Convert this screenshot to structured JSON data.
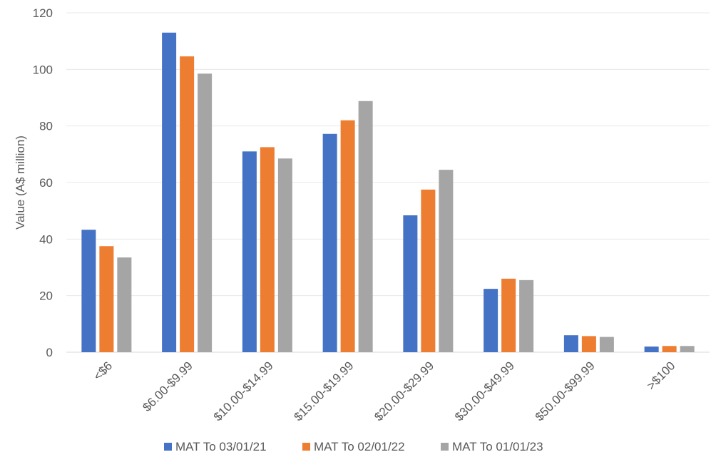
{
  "chart_data": {
    "type": "bar",
    "title": "",
    "xlabel": "",
    "ylabel": "Value (A$ million)",
    "ylim": [
      0,
      120
    ],
    "yticks": [
      0,
      20,
      40,
      60,
      80,
      100,
      120
    ],
    "grid": true,
    "legend_position": "bottom",
    "categories": [
      "<$6",
      "$6.00-$9.99",
      "$10.00-$14.99",
      "$15.00-$19.99",
      "$20.00-$29.99",
      "$30.00-$49.99",
      "$50.00-$99.99",
      ">$100"
    ],
    "series": [
      {
        "name": "MAT To 03/01/21",
        "color": "#4472C4",
        "values": [
          43.3,
          113.0,
          71.0,
          77.2,
          48.4,
          22.4,
          6.0,
          2.0
        ]
      },
      {
        "name": "MAT To 02/01/22",
        "color": "#ED7D31",
        "values": [
          37.5,
          104.6,
          72.5,
          82.0,
          57.5,
          26.0,
          5.7,
          2.2
        ]
      },
      {
        "name": "MAT To 01/01/23",
        "color": "#A5A5A5",
        "values": [
          33.5,
          98.5,
          68.5,
          88.8,
          64.5,
          25.5,
          5.4,
          2.2
        ]
      }
    ]
  }
}
